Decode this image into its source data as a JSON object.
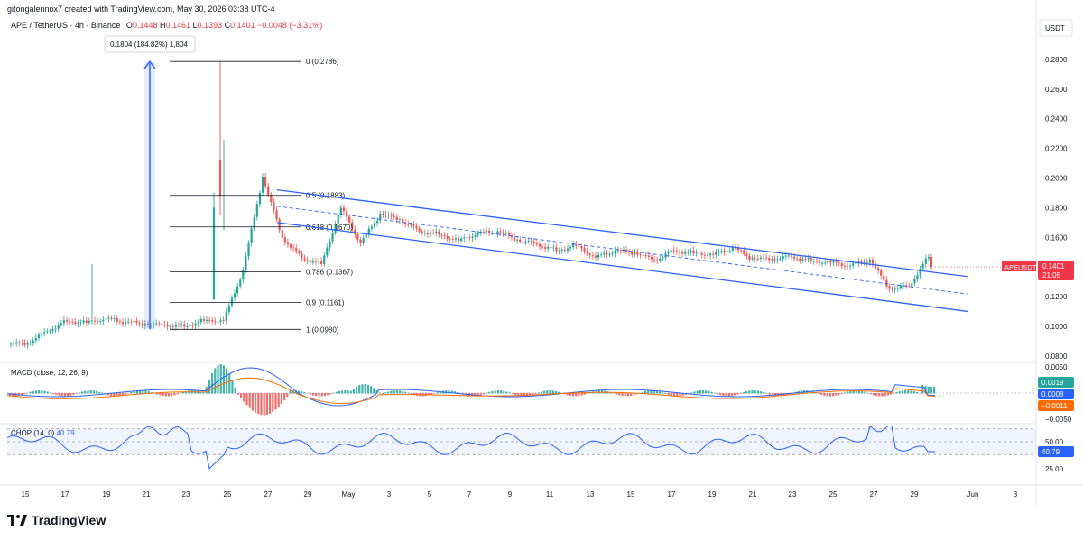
{
  "header": {
    "attribution": "gitongalennox7 created with TradingView.com, May 30, 2026 03:38 UTC-4"
  },
  "legend": {
    "symbol": "APE / TetherUS · 4h · Binance",
    "open_label": "O",
    "open": "0.1448",
    "high_label": "H",
    "high": "0.1461",
    "low_label": "L",
    "low": "0.1393",
    "close_label": "C",
    "close": "0.1401",
    "change": "−0.0048 (−3.31%)"
  },
  "currency": "USDT",
  "colors": {
    "up": "#26a69a",
    "down": "#ef5350",
    "channel": "#2962ff",
    "macd_line": "#2962ff",
    "signal_line": "#ff6d00",
    "price_tag": "#f23645"
  },
  "price_tag": {
    "symbol": "APEUSDT",
    "price": "0.1401",
    "countdown": "21:05"
  },
  "measure": {
    "label": "0.1804 (184.82%) 1,804"
  },
  "macd": {
    "label": "MACD (close, 12, 26, 9)",
    "hist": "0.0019",
    "macd": "0.0008",
    "signal": "−0.0011",
    "hist_value": 0.0019,
    "macd_value": 0.0008,
    "signal_value": -0.0011,
    "ticks": [
      "0.0050",
      "−0.0050"
    ]
  },
  "chop": {
    "label": "CHOP (14, 0)",
    "value": "40.79",
    "value_num": 40.79,
    "ticks": [
      "50.00",
      "25.00"
    ],
    "upper": 61.8,
    "lower": 38.2
  },
  "footer": {
    "brand": "TradingView",
    "logo": "tradingview-logo"
  },
  "chart_data": {
    "type": "candlestick",
    "title": "APE / TetherUS · 4h · Binance",
    "ylim": [
      0.08,
      0.29
    ],
    "y_ticks": [
      "0.2800",
      "0.2600",
      "0.2400",
      "0.2200",
      "0.2000",
      "0.1800",
      "0.1600",
      "0.1400",
      "0.1200",
      "0.1000",
      "0.0800"
    ],
    "x_ticks": [
      "15",
      "17",
      "19",
      "21",
      "23",
      "25",
      "27",
      "29",
      "May",
      "3",
      "5",
      "7",
      "9",
      "11",
      "13",
      "15",
      "17",
      "19",
      "21",
      "23",
      "25",
      "27",
      "29",
      "Jun",
      "3"
    ],
    "fib_levels": [
      {
        "label": "0 (0.2786)",
        "value": 0.2786
      },
      {
        "label": "0.5 (0.1883)",
        "value": 0.1883
      },
      {
        "label": "0.618 (0.1670)",
        "value": 0.167
      },
      {
        "label": "0.786 (0.1367)",
        "value": 0.1367
      },
      {
        "label": "0.9 (0.1161)",
        "value": 0.1161
      },
      {
        "label": "1 (0.0980)",
        "value": 0.098
      }
    ],
    "channel": {
      "upper": [
        [
          "Apr 28",
          0.192
        ],
        [
          "May 31",
          0.1335
        ]
      ],
      "lower": [
        [
          "Apr 28",
          0.17
        ],
        [
          "May 31",
          0.11
        ]
      ]
    },
    "series": [
      {
        "name": "APEUSDT",
        "close": [
          0.0885,
          0.0975,
          0.1045,
          0.103,
          0.1045,
          0.102,
          0.101,
          0.1015,
          0.101,
          0.1045,
          0.1035,
          0.1365,
          0.2,
          0.16,
          0.147,
          0.143,
          0.18,
          0.155,
          0.175,
          0.172,
          0.165,
          0.163,
          0.158,
          0.162,
          0.163,
          0.158,
          0.156,
          0.152,
          0.155,
          0.146,
          0.15,
          0.149,
          0.145,
          0.152,
          0.15,
          0.148,
          0.152,
          0.145,
          0.1455,
          0.148,
          0.145,
          0.143,
          0.14,
          0.144,
          0.125,
          0.128,
          0.148,
          0.1401
        ]
      }
    ]
  }
}
